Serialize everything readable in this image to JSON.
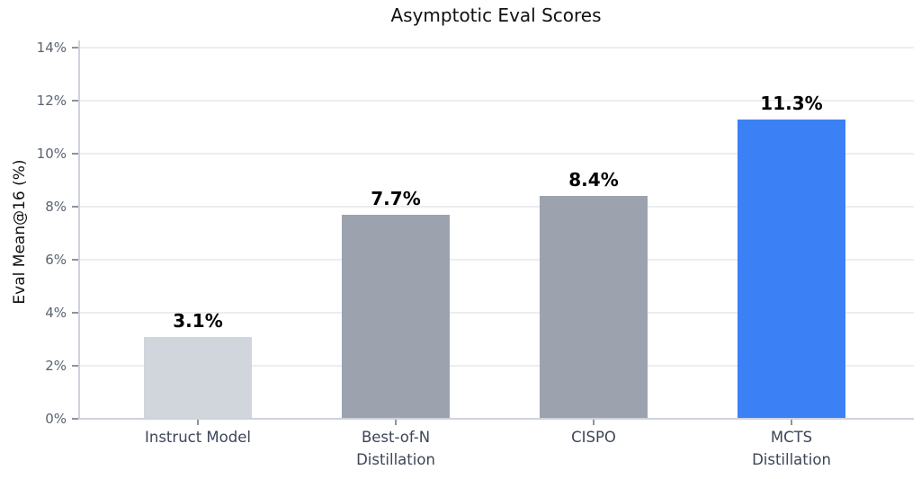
{
  "chart_data": {
    "type": "bar",
    "title": "Asymptotic Eval Scores",
    "ylabel": "Eval Mean@16 (%)",
    "xlabel": "",
    "categories": [
      "Instruct Model",
      "Best-of-N\nDistillation",
      "CISPO",
      "MCTS\nDistillation"
    ],
    "values": [
      3.1,
      7.7,
      8.4,
      11.3
    ],
    "value_labels": [
      "3.1%",
      "7.7%",
      "8.4%",
      "11.3%"
    ],
    "bar_colors": [
      "#d1d5dc",
      "#9ca3af",
      "#9ca3af",
      "#3b80f4"
    ],
    "ylim": [
      0,
      14
    ],
    "ytick_step": 2,
    "ytick_labels": [
      "0%",
      "2%",
      "4%",
      "6%",
      "8%",
      "10%",
      "12%",
      "14%"
    ],
    "grid": "horizontal",
    "legend": "none"
  },
  "colors": {
    "background": "#ffffff",
    "gridline": "#ecedf2",
    "spine": "#cfd2db",
    "tick_mark": "#8d93a0",
    "ytick_text": "#5a6372",
    "xtick_text": "#3d4557",
    "title_text": "#111111",
    "value_text": "#000000"
  }
}
